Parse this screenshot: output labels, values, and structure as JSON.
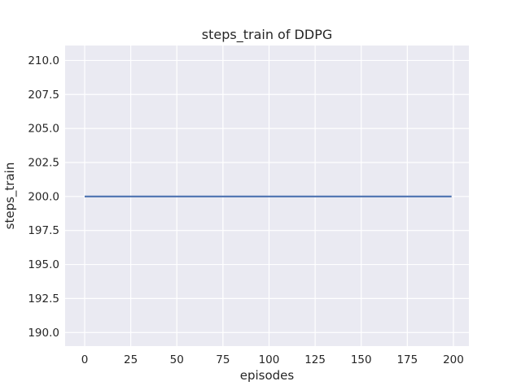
{
  "chart_data": {
    "type": "line",
    "title": "steps_train of DDPG",
    "xlabel": "episodes",
    "ylabel": "steps_train",
    "x_ticks": [
      0,
      25,
      50,
      75,
      100,
      125,
      150,
      175,
      200
    ],
    "x_tick_labels": [
      "0",
      "25",
      "50",
      "75",
      "100",
      "125",
      "150",
      "175",
      "200"
    ],
    "y_ticks": [
      190.0,
      192.5,
      195.0,
      197.5,
      200.0,
      202.5,
      205.0,
      207.5,
      210.0
    ],
    "y_tick_labels": [
      "190.0",
      "192.5",
      "195.0",
      "197.5",
      "200.0",
      "202.5",
      "205.0",
      "207.5",
      "210.0"
    ],
    "xlim": [
      -10.6,
      208.4
    ],
    "ylim": [
      189.0,
      211.1
    ],
    "grid": true,
    "legend": "none",
    "series": [
      {
        "name": "steps_train",
        "x": [
          0,
          199
        ],
        "y": [
          200,
          200
        ],
        "color": "#4c72b0"
      }
    ],
    "colors": {
      "figure_background": "#ffffff",
      "plot_background": "#eaeaf2",
      "gridline": "#ffffff",
      "text": "#262626",
      "line": "#4c72b0"
    }
  }
}
